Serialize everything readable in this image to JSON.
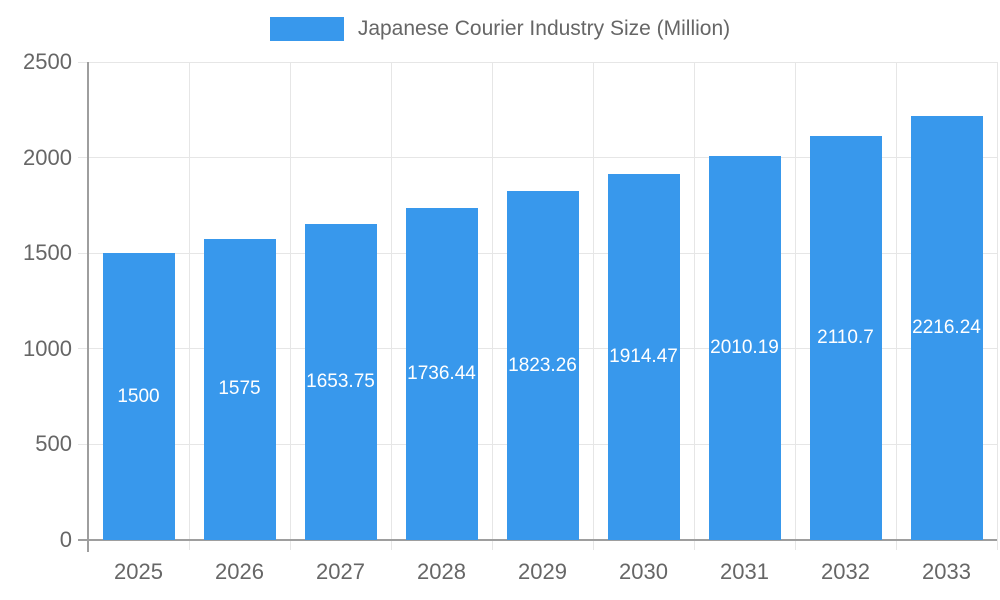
{
  "chart_data": {
    "type": "bar",
    "title": "Japanese Courier Industry Size (Million)",
    "series_name": "Japanese Courier Industry Size (Million)",
    "categories": [
      "2025",
      "2026",
      "2027",
      "2028",
      "2029",
      "2030",
      "2031",
      "2032",
      "2033"
    ],
    "values": [
      1500,
      1575,
      1653.75,
      1736.44,
      1823.26,
      1914.47,
      2010.19,
      2110.7,
      2216.24
    ],
    "value_labels": [
      "1500",
      "1575",
      "1653.75",
      "1736.44",
      "1823.26",
      "1914.47",
      "2010.19",
      "2110.7",
      "2216.24"
    ],
    "xlabel": "",
    "ylabel": "",
    "ylim": [
      0,
      2500
    ],
    "yticks": [
      0,
      500,
      1000,
      1500,
      2000,
      2500
    ],
    "grid": true,
    "legend_position": "top",
    "colors": {
      "bar": "#3898ec",
      "value_label": "#ffffff",
      "grid_line": "#e6e6e6",
      "axis_line": "#9e9e9e",
      "tick_label": "#666666",
      "legend_text": "#666666",
      "background": "#ffffff"
    }
  }
}
